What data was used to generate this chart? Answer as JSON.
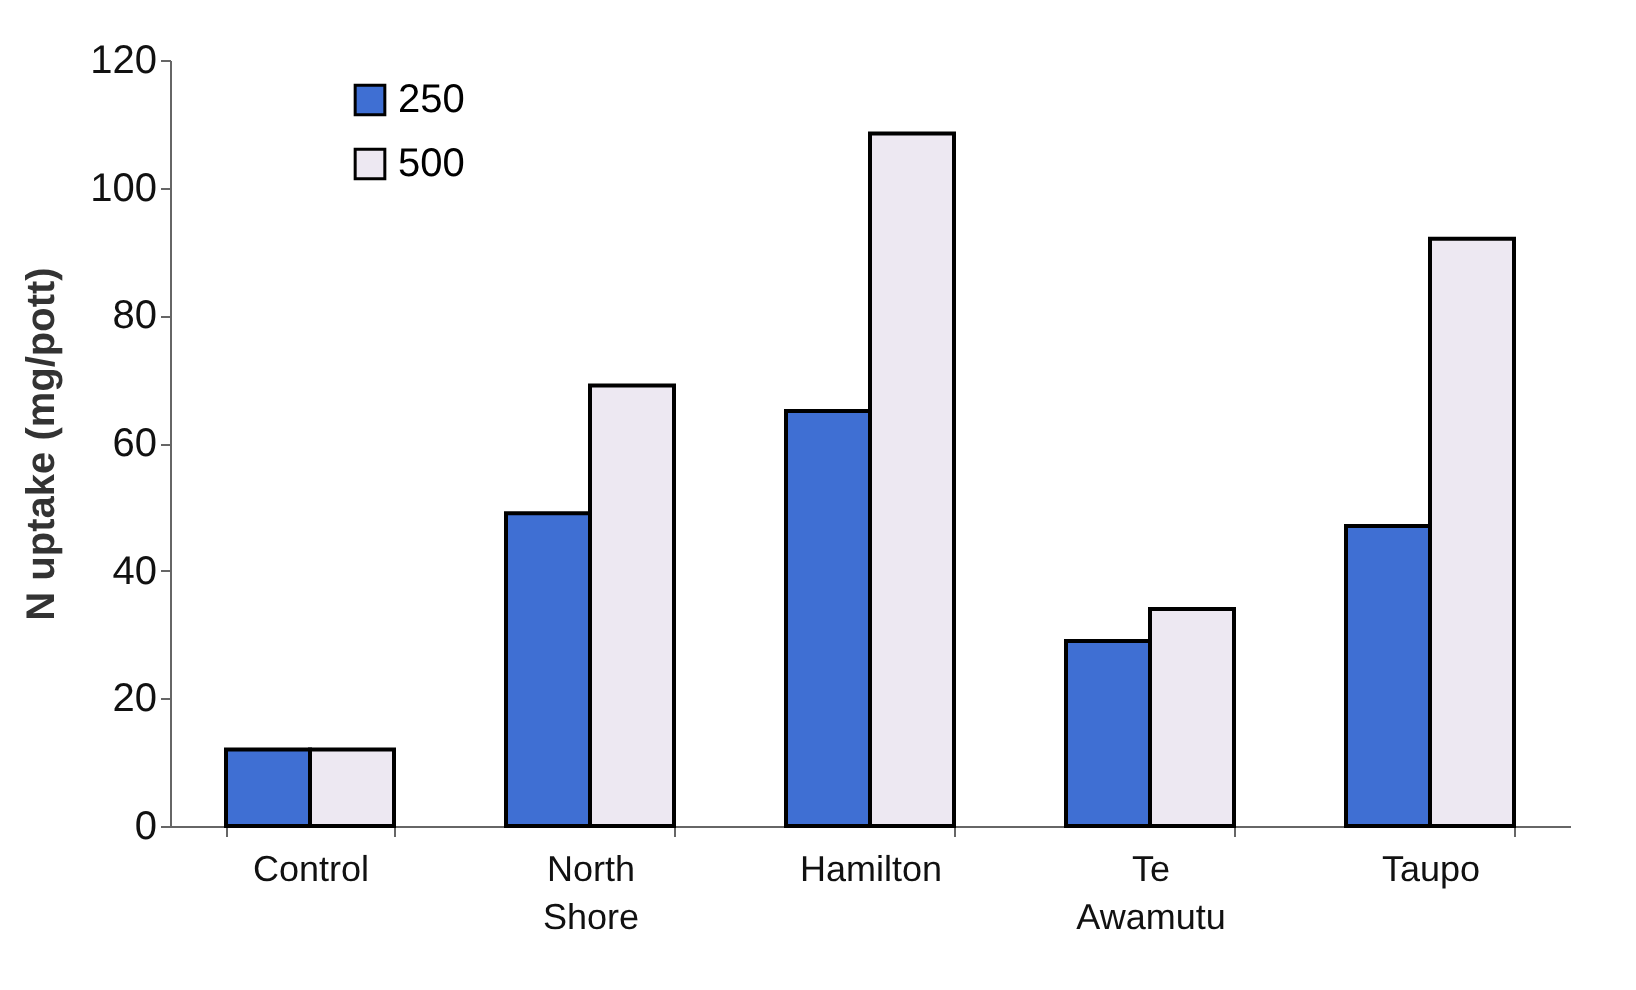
{
  "chart_data": {
    "type": "bar",
    "ylabel": "N uptake (mg/pott)",
    "categories": [
      "Control",
      "North Shore",
      "Hamilton",
      "Te Awamutu",
      "Taupo"
    ],
    "series": [
      {
        "name": "250",
        "color": "#3f6fd3",
        "values": [
          12,
          49,
          65,
          29,
          47
        ]
      },
      {
        "name": "500",
        "color": "#ede8f2",
        "values": [
          12,
          69,
          108.5,
          34,
          92
        ]
      }
    ],
    "ylim": [
      0,
      120
    ],
    "yticks": [
      0,
      20,
      40,
      60,
      80,
      100,
      120
    ],
    "grid": false,
    "legend": "top left"
  }
}
